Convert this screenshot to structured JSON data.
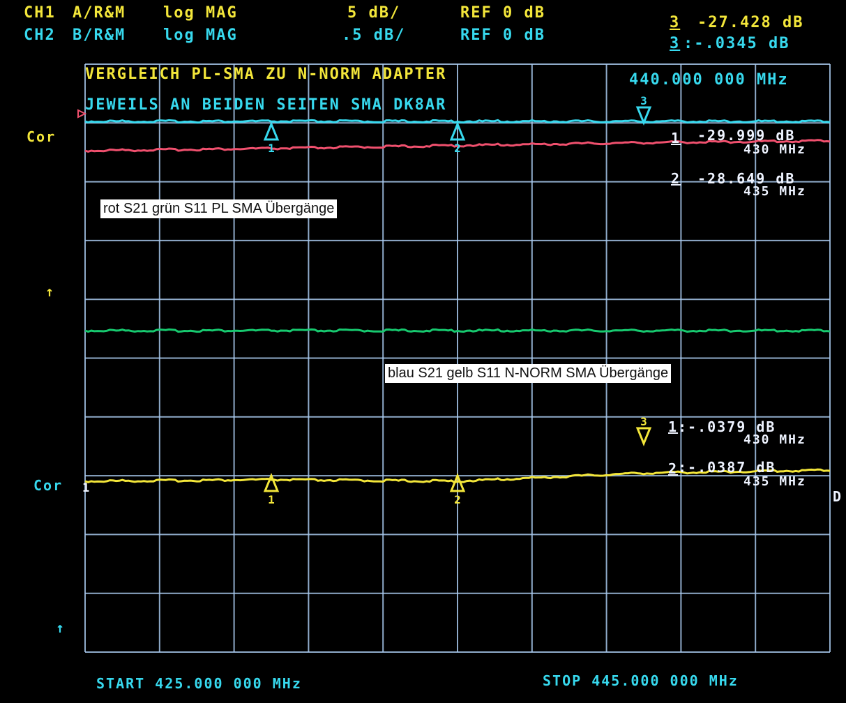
{
  "header": {
    "ch1": {
      "label": "CH1",
      "input": "A/R&M",
      "format": "log MAG",
      "scale": "5 dB/",
      "ref": "REF 0 dB",
      "marker_no": "3",
      "marker_value": "-27.428 dB"
    },
    "ch2": {
      "label": "CH2",
      "input": "B/R&M",
      "format": "log MAG",
      "scale": ".5 dB/",
      "ref": "REF 0 dB",
      "marker_no": "3",
      "marker_value": ":-.0345 dB"
    }
  },
  "title_line1": "VERGLEICH PL-SMA ZU N-NORM ADAPTER",
  "title_line2": "JEWEILS AN BEIDEN SEITEN SMA DK8AR",
  "active_marker_freq": "440.000 000 MHz",
  "side_labels": {
    "cor_upper": "Cor",
    "cor_lower": "Cor",
    "ref_index": "1",
    "right_edge": "D"
  },
  "marker_readouts_ch1": [
    {
      "no": "1",
      "value": "-29.999 dB",
      "freq": "430 MHz"
    },
    {
      "no": "2",
      "value": "-28.649 dB",
      "freq": "435 MHz"
    }
  ],
  "marker_readouts_ch2": [
    {
      "no": "1",
      "value": ":-.0379 dB",
      "freq": "430 MHz"
    },
    {
      "no": "2",
      "value": ":-.0387 dB",
      "freq": "435 MHz"
    }
  ],
  "annotations": {
    "upper": "rot S21 grün S11 PL SMA Übergänge",
    "lower": "blau S21 gelb S11 N-NORM SMA Übergänge"
  },
  "footer": {
    "start": "START 425.000 000 MHz",
    "stop": "STOP 445.000 000 MHz"
  },
  "marker_numbers": [
    "1",
    "2",
    "3"
  ],
  "colors": {
    "grid": "#a9c9ee",
    "cyan": "#37d9ee",
    "red": "#f0506e",
    "green": "#17c96f",
    "yellow": "#f3e63a"
  },
  "chart_data": {
    "type": "line",
    "x_unit": "MHz",
    "xlim": [
      425,
      445
    ],
    "grid_divisions": {
      "x": 10,
      "y": 10
    },
    "series": [
      {
        "color": "cyan",
        "x": [
          425,
          430,
          435,
          440,
          445
        ],
        "values": [
          0,
          0,
          0,
          0,
          0
        ]
      },
      {
        "color": "red",
        "x": [
          425,
          430,
          435,
          440,
          445
        ],
        "values": [
          -30.9,
          -29.999,
          -28.649,
          -27.428,
          -26.6
        ]
      },
      {
        "color": "green",
        "x": [
          425,
          430,
          435,
          440,
          445
        ],
        "values": [
          -0.05,
          -0.05,
          -0.05,
          -0.05,
          -0.05
        ]
      },
      {
        "color": "yellow",
        "x": [
          425,
          430,
          435,
          440,
          445
        ],
        "values": [
          -0.0387,
          -0.0379,
          -0.0387,
          -0.0345,
          -0.033
        ]
      }
    ],
    "markers": [
      {
        "no": "1",
        "x": 430
      },
      {
        "no": "2",
        "x": 435
      },
      {
        "no": "3",
        "x": 440
      }
    ]
  }
}
